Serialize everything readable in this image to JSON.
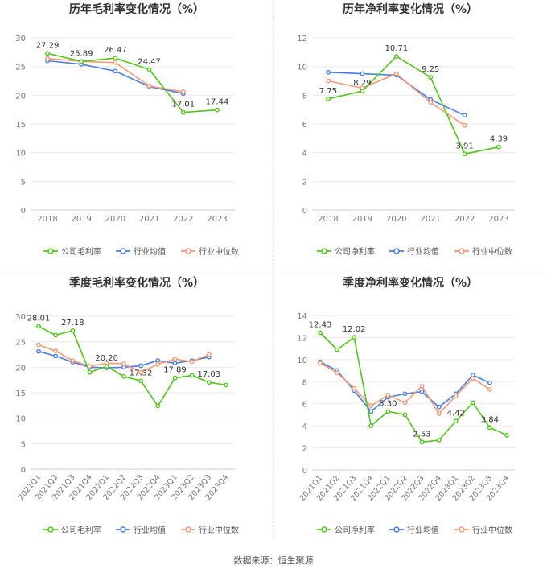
{
  "footer": {
    "source": "数据来源：恒生聚源"
  },
  "chart_data": [
    {
      "type": "line",
      "title": "历年毛利率变化情况（%）",
      "categories": [
        "2018",
        "2019",
        "2020",
        "2021",
        "2022",
        "2023"
      ],
      "ylim": [
        0,
        30
      ],
      "yticks": [
        0,
        5,
        10,
        15,
        20,
        25,
        30
      ],
      "grid": true,
      "legend_position": "bottom",
      "rotate_x_labels": false,
      "series": [
        {
          "name": "公司毛利率",
          "color": "#52c41a",
          "values": [
            27.29,
            25.89,
            26.47,
            24.47,
            17.01,
            17.44
          ],
          "labels": [
            "27.29",
            "25.89",
            "26.47",
            "24.47",
            "17.01",
            "17.44"
          ]
        },
        {
          "name": "行业均值",
          "color": "#4a7ee0",
          "values": [
            26.0,
            25.4,
            24.2,
            21.5,
            20.3,
            null
          ]
        },
        {
          "name": "行业中位数",
          "color": "#f59a7a",
          "values": [
            26.4,
            25.9,
            25.7,
            21.6,
            20.6,
            null
          ]
        }
      ]
    },
    {
      "type": "line",
      "title": "历年净利率变化情况（%）",
      "categories": [
        "2018",
        "2019",
        "2020",
        "2021",
        "2022",
        "2023"
      ],
      "ylim": [
        0,
        12
      ],
      "yticks": [
        0,
        2,
        4,
        6,
        8,
        10,
        12
      ],
      "grid": true,
      "legend_position": "bottom",
      "rotate_x_labels": false,
      "series": [
        {
          "name": "公司净利率",
          "color": "#52c41a",
          "values": [
            7.75,
            8.29,
            10.71,
            9.25,
            3.91,
            4.39
          ],
          "labels": [
            "7.75",
            "8.29",
            "10.71",
            "9.25",
            "3.91",
            "4.39"
          ]
        },
        {
          "name": "行业均值",
          "color": "#4a7ee0",
          "values": [
            9.6,
            9.5,
            9.4,
            7.7,
            6.6,
            null
          ]
        },
        {
          "name": "行业中位数",
          "color": "#f59a7a",
          "values": [
            9.0,
            8.5,
            9.5,
            7.5,
            5.9,
            null
          ]
        }
      ]
    },
    {
      "type": "line",
      "title": "季度毛利率变化情况（%）",
      "categories": [
        "2021Q1",
        "2021Q2",
        "2021Q3",
        "2021Q4",
        "2022Q1",
        "2022Q2",
        "2022Q3",
        "2022Q4",
        "2023Q1",
        "2023Q2",
        "2023Q3",
        "2023Q4"
      ],
      "ylim": [
        0,
        30
      ],
      "yticks": [
        0,
        5,
        10,
        15,
        20,
        25,
        30
      ],
      "grid": true,
      "legend_position": "bottom",
      "rotate_x_labels": true,
      "series": [
        {
          "name": "公司毛利率",
          "color": "#52c41a",
          "values": [
            28.01,
            26.3,
            27.18,
            19.0,
            20.2,
            18.2,
            17.32,
            12.4,
            17.89,
            18.4,
            17.03,
            16.5
          ],
          "labels": [
            "28.01",
            "",
            "27.18",
            "",
            "20.20",
            "",
            "17.32",
            "",
            "17.89",
            "",
            "17.03",
            ""
          ]
        },
        {
          "name": "行业均值",
          "color": "#4a7ee0",
          "values": [
            23.1,
            22.2,
            21.0,
            20.0,
            19.9,
            20.0,
            20.3,
            21.3,
            20.8,
            21.3,
            22.0,
            null
          ]
        },
        {
          "name": "行业中位数",
          "color": "#f59a7a",
          "values": [
            24.4,
            23.2,
            21.3,
            20.2,
            20.8,
            20.7,
            19.0,
            20.6,
            21.6,
            21.1,
            22.5,
            null
          ]
        }
      ]
    },
    {
      "type": "line",
      "title": "季度净利率变化情况（%）",
      "categories": [
        "2021Q1",
        "2021Q2",
        "2021Q3",
        "2021Q4",
        "2022Q1",
        "2022Q2",
        "2022Q3",
        "2022Q4",
        "2023Q1",
        "2023Q2",
        "2023Q3",
        "2023Q4"
      ],
      "ylim": [
        0,
        14
      ],
      "yticks": [
        0,
        2,
        4,
        6,
        8,
        10,
        12,
        14
      ],
      "grid": true,
      "legend_position": "bottom",
      "rotate_x_labels": true,
      "series": [
        {
          "name": "公司净利率",
          "color": "#52c41a",
          "values": [
            12.43,
            10.9,
            12.02,
            4.0,
            5.3,
            5.0,
            2.53,
            2.7,
            4.42,
            6.1,
            3.84,
            3.15
          ],
          "labels": [
            "12.43",
            "",
            "12.02",
            "",
            "5.30",
            "",
            "2.53",
            "",
            "4.42",
            "",
            "3.84",
            ""
          ]
        },
        {
          "name": "行业均值",
          "color": "#4a7ee0",
          "values": [
            9.8,
            9.0,
            7.2,
            5.3,
            6.6,
            6.9,
            7.1,
            5.7,
            6.9,
            8.6,
            7.9,
            null
          ]
        },
        {
          "name": "行业中位数",
          "color": "#f59a7a",
          "values": [
            9.7,
            8.8,
            7.4,
            5.8,
            6.8,
            6.1,
            7.6,
            5.1,
            6.7,
            8.3,
            7.3,
            null
          ]
        }
      ]
    }
  ]
}
